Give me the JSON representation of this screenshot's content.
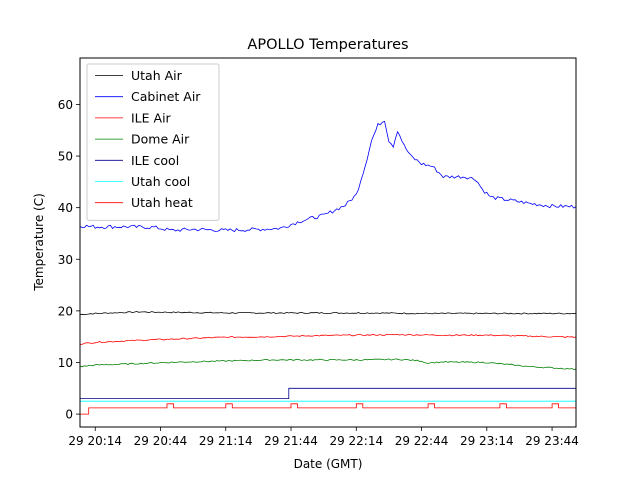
{
  "chart_data": {
    "type": "line",
    "title": "APOLLO Temperatures",
    "xlabel": "Date (GMT)",
    "ylabel": "Temperature (C)",
    "ylim": [
      -2.5,
      69
    ],
    "xlim": [
      -7,
      221
    ],
    "x_unit": "minutes since 29 20:14",
    "yticks": [
      0,
      10,
      20,
      30,
      40,
      50,
      60
    ],
    "xticks": [
      {
        "x": 0,
        "label": "29 20:14"
      },
      {
        "x": 30,
        "label": "29 20:44"
      },
      {
        "x": 60,
        "label": "29 21:14"
      },
      {
        "x": 90,
        "label": "29 21:44"
      },
      {
        "x": 120,
        "label": "29 22:14"
      },
      {
        "x": 150,
        "label": "29 22:44"
      },
      {
        "x": 180,
        "label": "29 23:14"
      },
      {
        "x": 210,
        "label": "29 23:44"
      }
    ],
    "legend_position": "top-left",
    "series": [
      {
        "name": "Utah Air",
        "color": "#000000",
        "points": [
          [
            -7,
            19.3
          ],
          [
            0,
            19.5
          ],
          [
            20,
            19.8
          ],
          [
            40,
            19.7
          ],
          [
            60,
            19.6
          ],
          [
            80,
            19.6
          ],
          [
            100,
            19.6
          ],
          [
            120,
            19.6
          ],
          [
            130,
            19.6
          ],
          [
            150,
            19.5
          ],
          [
            170,
            19.5
          ],
          [
            190,
            19.5
          ],
          [
            210,
            19.5
          ],
          [
            221,
            19.5
          ]
        ]
      },
      {
        "name": "Cabinet Air",
        "color": "#0000ff",
        "points": [
          [
            -7,
            36.5
          ],
          [
            0,
            36.3
          ],
          [
            15,
            36.3
          ],
          [
            27,
            36.2
          ],
          [
            35,
            35.6
          ],
          [
            45,
            35.8
          ],
          [
            60,
            35.6
          ],
          [
            75,
            35.8
          ],
          [
            85,
            36.0
          ],
          [
            95,
            37.5
          ],
          [
            105,
            38.5
          ],
          [
            115,
            40.5
          ],
          [
            120,
            42.5
          ],
          [
            124,
            48
          ],
          [
            127,
            53
          ],
          [
            130,
            56
          ],
          [
            133,
            57
          ],
          [
            135,
            53
          ],
          [
            137,
            52
          ],
          [
            139,
            55
          ],
          [
            142,
            52
          ],
          [
            145,
            50
          ],
          [
            150,
            48.5
          ],
          [
            155,
            48
          ],
          [
            160,
            46
          ],
          [
            165,
            46
          ],
          [
            170,
            46
          ],
          [
            175,
            45.5
          ],
          [
            178,
            43.5
          ],
          [
            182,
            42
          ],
          [
            190,
            41.5
          ],
          [
            200,
            40.8
          ],
          [
            210,
            40.3
          ],
          [
            221,
            40.2
          ]
        ]
      },
      {
        "name": "ILE Air",
        "color": "#ff0000",
        "points": [
          [
            -7,
            13.6
          ],
          [
            0,
            13.9
          ],
          [
            20,
            14.3
          ],
          [
            40,
            14.6
          ],
          [
            60,
            14.9
          ],
          [
            80,
            15.0
          ],
          [
            100,
            15.2
          ],
          [
            120,
            15.3
          ],
          [
            140,
            15.4
          ],
          [
            160,
            15.3
          ],
          [
            180,
            15.3
          ],
          [
            200,
            15.1
          ],
          [
            221,
            14.9
          ]
        ]
      },
      {
        "name": "Dome Air",
        "color": "#008000",
        "points": [
          [
            -7,
            9.2
          ],
          [
            0,
            9.5
          ],
          [
            20,
            9.8
          ],
          [
            40,
            10.1
          ],
          [
            60,
            10.3
          ],
          [
            80,
            10.5
          ],
          [
            100,
            10.5
          ],
          [
            120,
            10.5
          ],
          [
            140,
            10.6
          ],
          [
            150,
            10.3
          ],
          [
            152,
            9.9
          ],
          [
            160,
            10.1
          ],
          [
            180,
            10.0
          ],
          [
            200,
            9.2
          ],
          [
            221,
            8.7
          ]
        ]
      },
      {
        "name": "ILE cool",
        "color": "#00008b",
        "step": true,
        "points": [
          [
            -7,
            3.0
          ],
          [
            89,
            3.0
          ],
          [
            89,
            5.0
          ],
          [
            221,
            5.0
          ]
        ]
      },
      {
        "name": "Utah cool",
        "color": "#00ffff",
        "points": [
          [
            -7,
            2.5
          ],
          [
            221,
            2.5
          ]
        ]
      },
      {
        "name": "Utah heat",
        "color": "#ff0000",
        "step": true,
        "low": 0.0,
        "high": 1.2,
        "pulses": [
          [
            -3,
            2
          ],
          [
            33,
            36
          ],
          [
            60,
            63
          ],
          [
            90,
            93
          ],
          [
            120,
            123
          ],
          [
            153,
            156
          ],
          [
            186,
            189
          ],
          [
            210,
            213
          ]
        ],
        "points": [
          [
            -7,
            0
          ],
          [
            -3,
            0
          ],
          [
            -3,
            1.2
          ],
          [
            221,
            1.2
          ]
        ]
      }
    ]
  }
}
